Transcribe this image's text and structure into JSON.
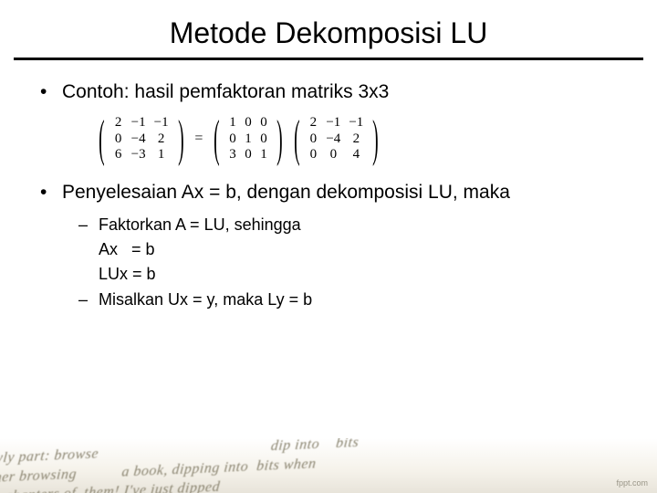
{
  "title": "Metode Dekomposisi LU",
  "bullets": {
    "b1": "Contoh: hasil pemfaktoran matriks 3x3",
    "b2": "Penyelesaian Ax = b, dengan dekomposisi LU, maka",
    "s1": "Faktorkan A = LU, sehingga",
    "s1a": "Ax   = b",
    "s1b": "LUx = b",
    "s2": "Misalkan Ux = y, maka Ly = b"
  },
  "matrices": {
    "A": [
      [
        "2",
        "−1",
        "−1"
      ],
      [
        "0",
        "−4",
        "2"
      ],
      [
        "6",
        "−3",
        "1"
      ]
    ],
    "L": [
      [
        "1",
        "0",
        "0"
      ],
      [
        "0",
        "1",
        "0"
      ],
      [
        "3",
        "0",
        "1"
      ]
    ],
    "U": [
      [
        "2",
        "−1",
        "−1"
      ],
      [
        "0",
        "−4",
        "2"
      ],
      [
        "0",
        "0",
        "4"
      ]
    ],
    "col_widths": {
      "A": [
        18,
        26,
        24
      ],
      "L": [
        16,
        18,
        16
      ],
      "U": [
        18,
        26,
        24
      ]
    }
  },
  "footer": {
    "blur_text": "wly part: browse                                          dip into    bits\nmer browsing           a book, dipping into  bits when\n    chapters of  them! I've just dipped",
    "credit": "fppt.com"
  },
  "colors": {
    "text": "#000000",
    "bg": "#ffffff",
    "footer_text": "#8a8470"
  }
}
